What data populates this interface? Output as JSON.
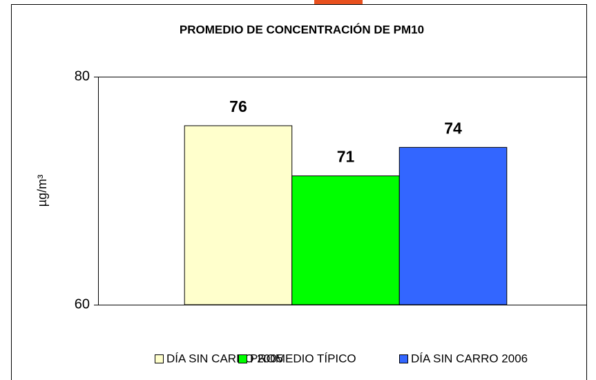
{
  "chart_data": {
    "type": "bar",
    "title": "PROMEDIO DE CONCENTRACIÓN DE PM10",
    "ylabel": "µg/m³",
    "categories": [
      null
    ],
    "series": [
      {
        "name": "DÍA SIN CARRO 2005",
        "color": "#ffffcc",
        "values": [
          75.7
        ],
        "value_labels": [
          "76"
        ]
      },
      {
        "name": "PROMEDIO TÍPICO",
        "color": "#00ff00",
        "values": [
          71.3
        ],
        "value_labels": [
          "71"
        ]
      },
      {
        "name": "DÍA SIN CARRO 2006",
        "color": "#3366ff",
        "values": [
          73.8
        ],
        "value_labels": [
          "74"
        ]
      }
    ],
    "ylim": [
      60,
      80
    ],
    "yticks": [
      60,
      80
    ],
    "grid": false,
    "legend": "bottom"
  }
}
